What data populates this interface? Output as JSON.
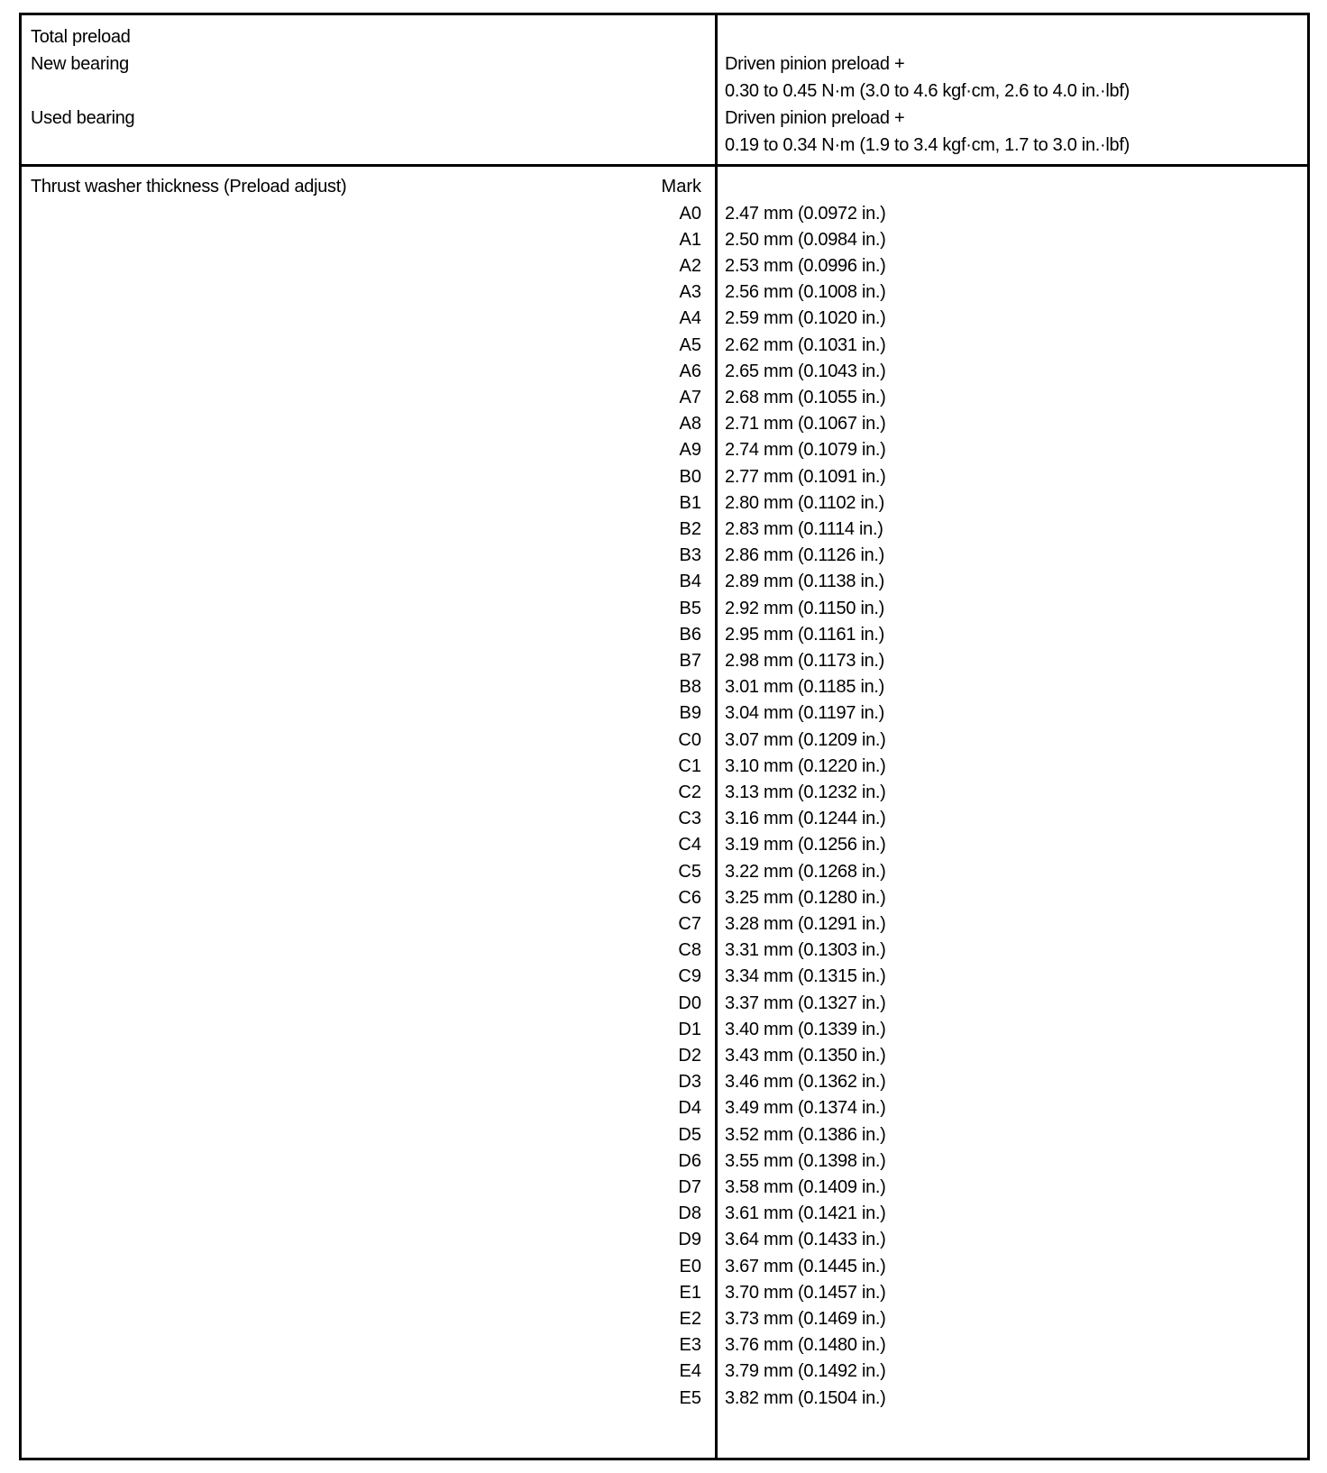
{
  "preload": {
    "label": "Total preload",
    "new_bearing": {
      "label": "New bearing",
      "value_line1": "Driven pinion preload +",
      "value_line2": "0.30 to 0.45 N·m (3.0 to 4.6 kgf·cm, 2.6 to 4.0 in.·lbf)"
    },
    "used_bearing": {
      "label": "Used bearing",
      "value_line1": "Driven pinion preload +",
      "value_line2": "0.19 to 0.34 N·m (1.9 to 3.4 kgf·cm, 1.7 to 3.0 in.·lbf)"
    }
  },
  "washer": {
    "label": "Thrust washer thickness (Preload adjust)",
    "mark_header": "Mark",
    "rows": [
      {
        "mark": "A0",
        "value": "2.47 mm (0.0972 in.)"
      },
      {
        "mark": "A1",
        "value": "2.50 mm (0.0984 in.)"
      },
      {
        "mark": "A2",
        "value": "2.53 mm (0.0996 in.)"
      },
      {
        "mark": "A3",
        "value": "2.56 mm (0.1008 in.)"
      },
      {
        "mark": "A4",
        "value": "2.59 mm (0.1020 in.)"
      },
      {
        "mark": "A5",
        "value": "2.62 mm (0.1031 in.)"
      },
      {
        "mark": "A6",
        "value": "2.65 mm (0.1043 in.)"
      },
      {
        "mark": "A7",
        "value": "2.68 mm (0.1055 in.)"
      },
      {
        "mark": "A8",
        "value": "2.71 mm (0.1067 in.)"
      },
      {
        "mark": "A9",
        "value": "2.74 mm (0.1079 in.)"
      },
      {
        "mark": "B0",
        "value": "2.77 mm (0.1091 in.)"
      },
      {
        "mark": "B1",
        "value": "2.80 mm (0.1102 in.)"
      },
      {
        "mark": "B2",
        "value": "2.83 mm (0.1114 in.)"
      },
      {
        "mark": "B3",
        "value": "2.86 mm (0.1126 in.)"
      },
      {
        "mark": "B4",
        "value": "2.89 mm (0.1138 in.)"
      },
      {
        "mark": "B5",
        "value": "2.92 mm (0.1150 in.)"
      },
      {
        "mark": "B6",
        "value": "2.95 mm (0.1161 in.)"
      },
      {
        "mark": "B7",
        "value": "2.98 mm (0.1173 in.)"
      },
      {
        "mark": "B8",
        "value": "3.01 mm (0.1185 in.)"
      },
      {
        "mark": "B9",
        "value": "3.04 mm (0.1197 in.)"
      },
      {
        "mark": "C0",
        "value": "3.07 mm (0.1209 in.)"
      },
      {
        "mark": "C1",
        "value": "3.10 mm (0.1220 in.)"
      },
      {
        "mark": "C2",
        "value": "3.13 mm (0.1232 in.)"
      },
      {
        "mark": "C3",
        "value": "3.16 mm (0.1244 in.)"
      },
      {
        "mark": "C4",
        "value": "3.19 mm (0.1256 in.)"
      },
      {
        "mark": "C5",
        "value": "3.22 mm (0.1268 in.)"
      },
      {
        "mark": "C6",
        "value": "3.25 mm (0.1280 in.)"
      },
      {
        "mark": "C7",
        "value": "3.28 mm (0.1291 in.)"
      },
      {
        "mark": "C8",
        "value": "3.31 mm (0.1303 in.)"
      },
      {
        "mark": "C9",
        "value": "3.34 mm (0.1315 in.)"
      },
      {
        "mark": "D0",
        "value": "3.37 mm (0.1327 in.)"
      },
      {
        "mark": "D1",
        "value": "3.40 mm (0.1339 in.)"
      },
      {
        "mark": "D2",
        "value": "3.43 mm (0.1350 in.)"
      },
      {
        "mark": "D3",
        "value": "3.46 mm (0.1362 in.)"
      },
      {
        "mark": "D4",
        "value": "3.49 mm (0.1374 in.)"
      },
      {
        "mark": "D5",
        "value": "3.52 mm (0.1386 in.)"
      },
      {
        "mark": "D6",
        "value": "3.55 mm (0.1398 in.)"
      },
      {
        "mark": "D7",
        "value": "3.58 mm (0.1409 in.)"
      },
      {
        "mark": "D8",
        "value": "3.61 mm (0.1421 in.)"
      },
      {
        "mark": "D9",
        "value": "3.64 mm (0.1433 in.)"
      },
      {
        "mark": "E0",
        "value": "3.67 mm (0.1445 in.)"
      },
      {
        "mark": "E1",
        "value": "3.70 mm (0.1457 in.)"
      },
      {
        "mark": "E2",
        "value": "3.73 mm (0.1469 in.)"
      },
      {
        "mark": "E3",
        "value": "3.76 mm (0.1480 in.)"
      },
      {
        "mark": "E4",
        "value": "3.79 mm (0.1492 in.)"
      },
      {
        "mark": "E5",
        "value": "3.82 mm (0.1504 in.)"
      }
    ]
  }
}
